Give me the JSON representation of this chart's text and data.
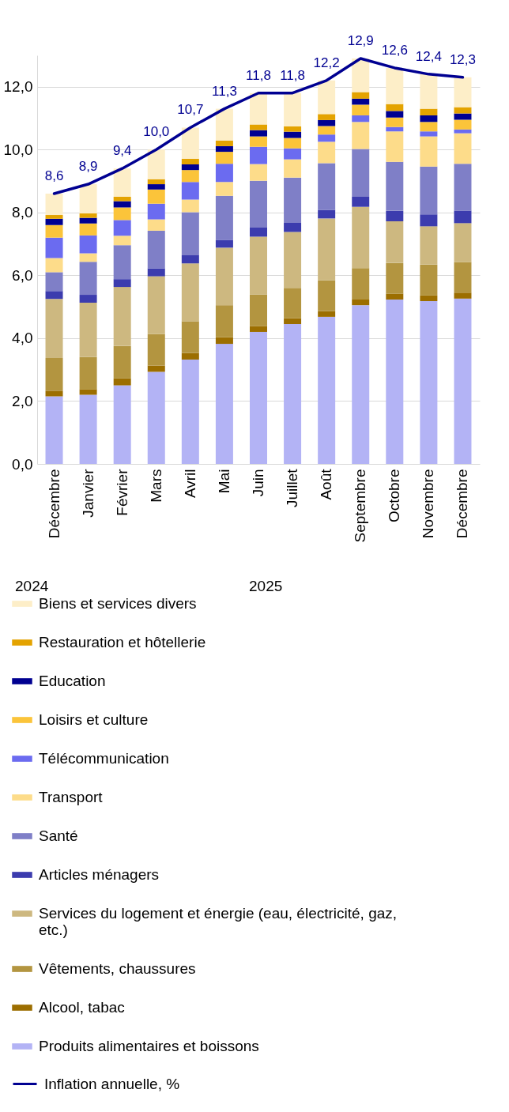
{
  "chart_data": {
    "type": "bar",
    "stacked": true,
    "categories": [
      "Décembre",
      "Janvier",
      "Février",
      "Mars",
      "Avril",
      "Mai",
      "Juin",
      "Juillet",
      "Août",
      "Septembre",
      "Octobre",
      "Novembre",
      "Décembre"
    ],
    "series": [
      {
        "name": "Produits alimentaires et boissons",
        "color": "#b3b3f5",
        "values": [
          2.15,
          2.2,
          2.5,
          2.93,
          3.32,
          3.82,
          4.2,
          4.45,
          4.68,
          5.05,
          5.23,
          5.18,
          5.26
        ]
      },
      {
        "name": "Alcool, tabac",
        "color": "#9c6e00",
        "values": [
          0.18,
          0.18,
          0.22,
          0.2,
          0.21,
          0.21,
          0.19,
          0.19,
          0.18,
          0.18,
          0.19,
          0.18,
          0.19
        ]
      },
      {
        "name": "Vêtements, chaussures",
        "color": "#b39540",
        "values": [
          1.04,
          1.02,
          1.03,
          1.0,
          1.01,
          1.02,
          1.0,
          0.96,
          0.98,
          1.0,
          0.97,
          0.98,
          0.97
        ]
      },
      {
        "name": "Services du logement et énergie (eau, électricité, gaz, etc.)",
        "color": "#cdb880",
        "values": [
          1.88,
          1.73,
          1.88,
          1.84,
          1.84,
          1.83,
          1.84,
          1.78,
          1.97,
          1.95,
          1.33,
          1.22,
          1.24
        ]
      },
      {
        "name": "Articles ménagers",
        "color": "#3c3cae",
        "values": [
          0.25,
          0.25,
          0.25,
          0.25,
          0.26,
          0.25,
          0.29,
          0.29,
          0.27,
          0.32,
          0.33,
          0.38,
          0.4
        ]
      },
      {
        "name": "Santé",
        "color": "#7f7fc7",
        "values": [
          0.6,
          1.05,
          1.08,
          1.2,
          1.37,
          1.4,
          1.49,
          1.44,
          1.49,
          1.52,
          1.56,
          1.52,
          1.49
        ]
      },
      {
        "name": "Transport",
        "color": "#fddc8a",
        "values": [
          0.45,
          0.27,
          0.3,
          0.36,
          0.4,
          0.44,
          0.53,
          0.58,
          0.68,
          0.86,
          0.97,
          0.96,
          0.97
        ]
      },
      {
        "name": "Télécommunication",
        "color": "#6b6bf0",
        "values": [
          0.65,
          0.57,
          0.5,
          0.5,
          0.56,
          0.58,
          0.55,
          0.35,
          0.23,
          0.21,
          0.14,
          0.16,
          0.12
        ]
      },
      {
        "name": "Loisirs et culture",
        "color": "#fbc43a",
        "values": [
          0.4,
          0.38,
          0.4,
          0.45,
          0.38,
          0.38,
          0.33,
          0.33,
          0.27,
          0.34,
          0.3,
          0.3,
          0.31
        ]
      },
      {
        "name": "Education",
        "color": "#000091",
        "values": [
          0.2,
          0.18,
          0.2,
          0.17,
          0.18,
          0.18,
          0.2,
          0.2,
          0.19,
          0.19,
          0.21,
          0.21,
          0.2
        ]
      },
      {
        "name": "Restauration et hôtellerie",
        "color": "#e4a300",
        "values": [
          0.12,
          0.14,
          0.14,
          0.16,
          0.18,
          0.18,
          0.18,
          0.17,
          0.19,
          0.21,
          0.22,
          0.21,
          0.2
        ]
      },
      {
        "name": "Biens et services divers",
        "color": "#fdeec8",
        "values": [
          0.68,
          0.93,
          0.9,
          0.94,
          0.99,
          1.01,
          1.0,
          1.06,
          1.07,
          1.07,
          1.15,
          1.1,
          0.95
        ]
      },
      {
        "name": "Inflation annuelle, %",
        "type": "line",
        "color": "#000091",
        "values": [
          8.6,
          8.9,
          9.4,
          10.0,
          10.7,
          11.3,
          11.8,
          11.8,
          12.2,
          12.9,
          12.6,
          12.4,
          12.3
        ],
        "value_labels": [
          "8,6",
          "8,9",
          "9,4",
          "10,0",
          "10,7",
          "11,3",
          "11,8",
          "11,8",
          "12,2",
          "12,9",
          "12,6",
          "12,4",
          "12,3"
        ]
      }
    ],
    "ylim": [
      0,
      13
    ],
    "yticks": [
      {
        "value": 0,
        "label": "0,0"
      },
      {
        "value": 2,
        "label": "2,0"
      },
      {
        "value": 4,
        "label": "4,0"
      },
      {
        "value": 6,
        "label": "6,0"
      },
      {
        "value": 8,
        "label": "8,0"
      },
      {
        "value": 10,
        "label": "10,0"
      },
      {
        "value": 12,
        "label": "12,0"
      }
    ],
    "grid": "y",
    "legend": "bottom",
    "annotations": [
      "2024",
      "2025"
    ]
  }
}
